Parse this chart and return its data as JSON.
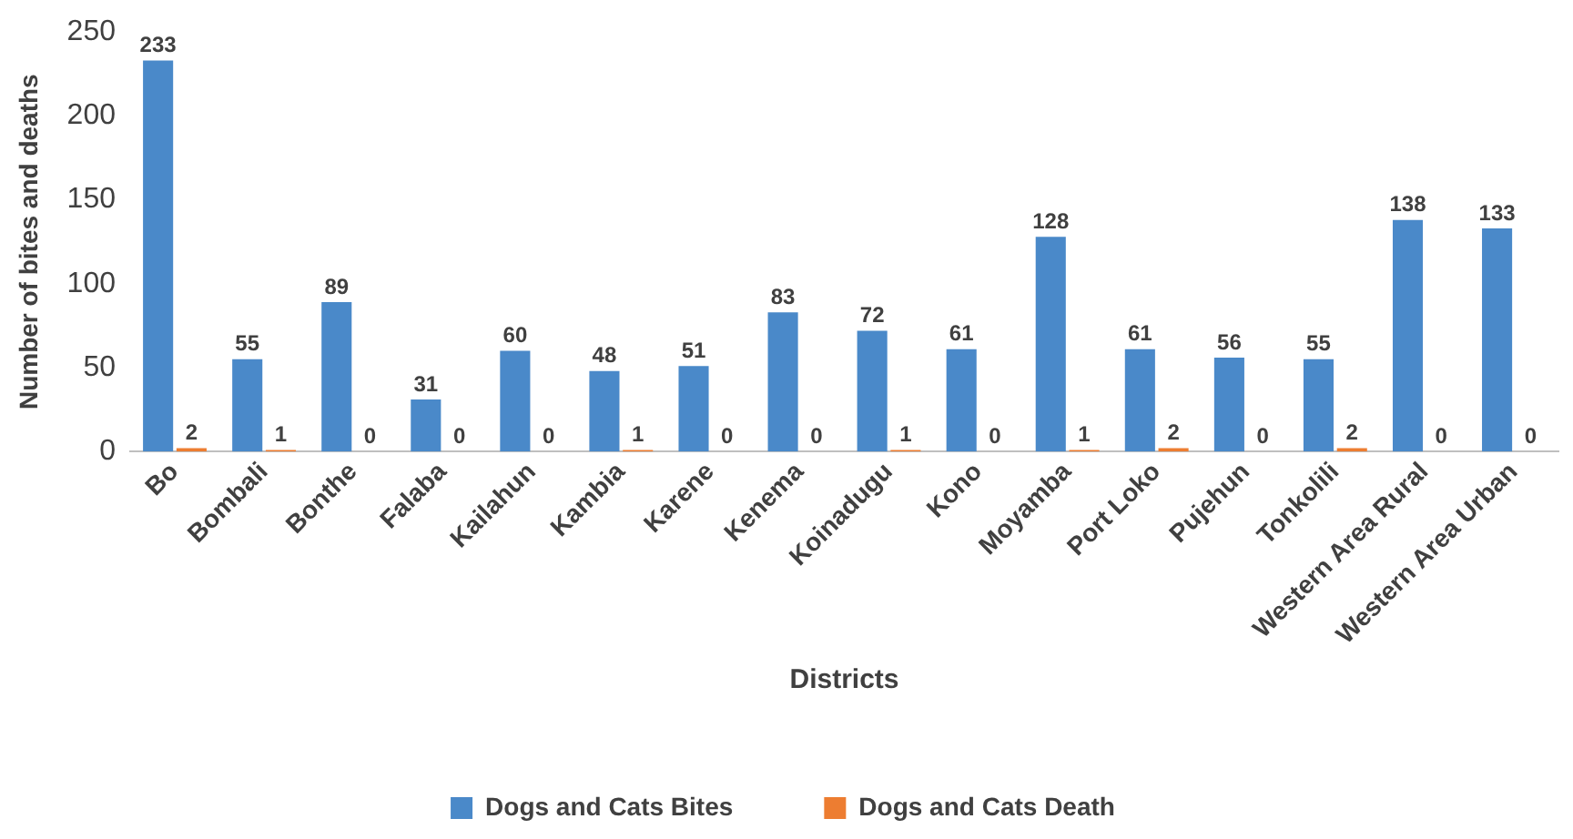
{
  "chart_data": {
    "type": "bar",
    "xlabel": "Districts",
    "ylabel": "Number of bites and deaths",
    "categories": [
      "Bo",
      "Bombali",
      "Bonthe",
      "Falaba",
      "Kailahun",
      "Kambia",
      "Karene",
      "Kenema",
      "Koinadugu",
      "Kono",
      "Moyamba",
      "Port Loko",
      "Pujehun",
      "Tonkolili",
      "Western Area Rural",
      "Western Area Urban"
    ],
    "series": [
      {
        "name": "Dogs and Cats Bites",
        "color": "#4a89c9",
        "values": [
          233,
          55,
          89,
          31,
          60,
          48,
          51,
          83,
          72,
          61,
          128,
          61,
          56,
          55,
          138,
          133
        ]
      },
      {
        "name": "Dogs and Cats Death",
        "color": "#ed7d31",
        "values": [
          2,
          1,
          0,
          0,
          0,
          1,
          0,
          0,
          1,
          0,
          1,
          2,
          0,
          2,
          0,
          0
        ]
      }
    ],
    "ylim": [
      0,
      250
    ],
    "yticks": [
      0,
      50,
      100,
      150,
      200,
      250
    ],
    "grid": false,
    "legend": "bottom",
    "data_labels": true
  }
}
